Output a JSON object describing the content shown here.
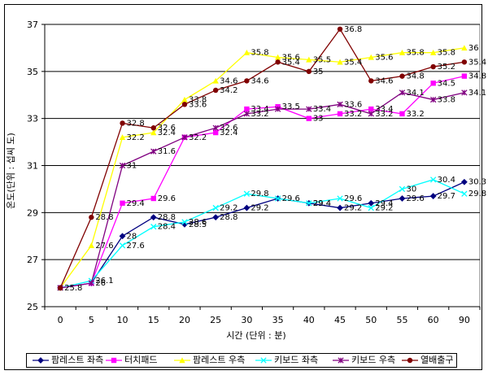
{
  "chart_data": {
    "type": "line",
    "title": "",
    "xlabel": "시간 (단위 : 분)",
    "ylabel": "온도(단위 : 섭씨 도)",
    "x": [
      0,
      5,
      10,
      15,
      20,
      25,
      30,
      35,
      40,
      45,
      50,
      55,
      60,
      90
    ],
    "x_tick_labels": [
      "0",
      "5",
      "10",
      "15",
      "20",
      "25",
      "30",
      "35",
      "40",
      "45",
      "50",
      "55",
      "60",
      "90"
    ],
    "ylim": [
      25,
      37
    ],
    "y_ticks": [
      25,
      27,
      29,
      31,
      33,
      35,
      37
    ],
    "grid": "horizontal",
    "legend_position": "bottom",
    "series": [
      {
        "name": "팜레스트 좌측",
        "color": "#000080",
        "marker": "diamond",
        "values": [
          25.8,
          26,
          28,
          28.8,
          28.5,
          28.8,
          29.2,
          29.6,
          29.4,
          29.2,
          29.4,
          29.6,
          29.7,
          30.3
        ],
        "labels": [
          "25.8",
          "26",
          "28",
          "28.8",
          "28.5",
          "28.8",
          "29.2",
          "29.6",
          "29.4",
          "29.2",
          "29.4",
          "29.6",
          "29.7",
          "30.3"
        ]
      },
      {
        "name": "터치패드",
        "color": "#ff00ff",
        "marker": "square",
        "values": [
          25.8,
          26,
          29.4,
          29.6,
          32.2,
          32.4,
          33.4,
          33.5,
          33,
          33.2,
          33.4,
          33.2,
          34.5,
          34.8
        ],
        "labels": [
          "",
          "",
          "29.4",
          "29.6",
          "32.2",
          "32.4",
          "33.4",
          "33.5",
          "33",
          "33.2",
          "33.4",
          "33.2",
          "34.5",
          "34.8"
        ]
      },
      {
        "name": "팜레스트 우측",
        "color": "#ffff00",
        "marker": "triangle",
        "values": [
          25.8,
          27.6,
          32.2,
          32.4,
          33.8,
          34.6,
          35.8,
          35.6,
          35.5,
          35.4,
          35.6,
          35.8,
          35.8,
          36
        ],
        "labels": [
          "",
          "27.6",
          "32.2",
          "32.4",
          "33.8",
          "34.6",
          "35.8",
          "35.6",
          "35.5",
          "35.4",
          "35.6",
          "35.8",
          "35.8",
          "36"
        ]
      },
      {
        "name": "키보드 좌측",
        "color": "#00ffff",
        "marker": "x",
        "values": [
          25.8,
          26.1,
          27.6,
          28.4,
          28.6,
          29.2,
          29.8,
          29.6,
          29.4,
          29.6,
          29.2,
          30,
          30.4,
          29.8
        ],
        "labels": [
          "",
          "26.1",
          "27.6",
          "28.4",
          "28.6",
          "29.2",
          "29.8",
          "",
          "29.4",
          "29.6",
          "29.2",
          "30",
          "30.4",
          "29.8"
        ]
      },
      {
        "name": "키보드 우측",
        "color": "#800080",
        "marker": "star",
        "values": [
          25.8,
          26,
          31,
          31.6,
          32.2,
          32.6,
          33.2,
          33.4,
          33.4,
          33.6,
          33.2,
          34.1,
          33.8,
          34.1
        ],
        "labels": [
          "",
          "",
          "31",
          "31.6",
          "",
          "32.6",
          "33.2",
          "",
          "33.4",
          "33.6",
          "33.2",
          "34.1",
          "33.8",
          "34.1"
        ]
      },
      {
        "name": "열배출구",
        "color": "#800000",
        "marker": "circle",
        "values": [
          25.8,
          28.8,
          32.8,
          32.6,
          33.6,
          34.2,
          34.6,
          35.4,
          35,
          36.8,
          34.6,
          34.8,
          35.2,
          35.4
        ],
        "labels": [
          "",
          "28.8",
          "32.8",
          "32.6",
          "33.6",
          "34.2",
          "34.6",
          "35.4",
          "35",
          "36.8",
          "34.6",
          "34.8",
          "35.2",
          "35.4"
        ]
      }
    ]
  }
}
